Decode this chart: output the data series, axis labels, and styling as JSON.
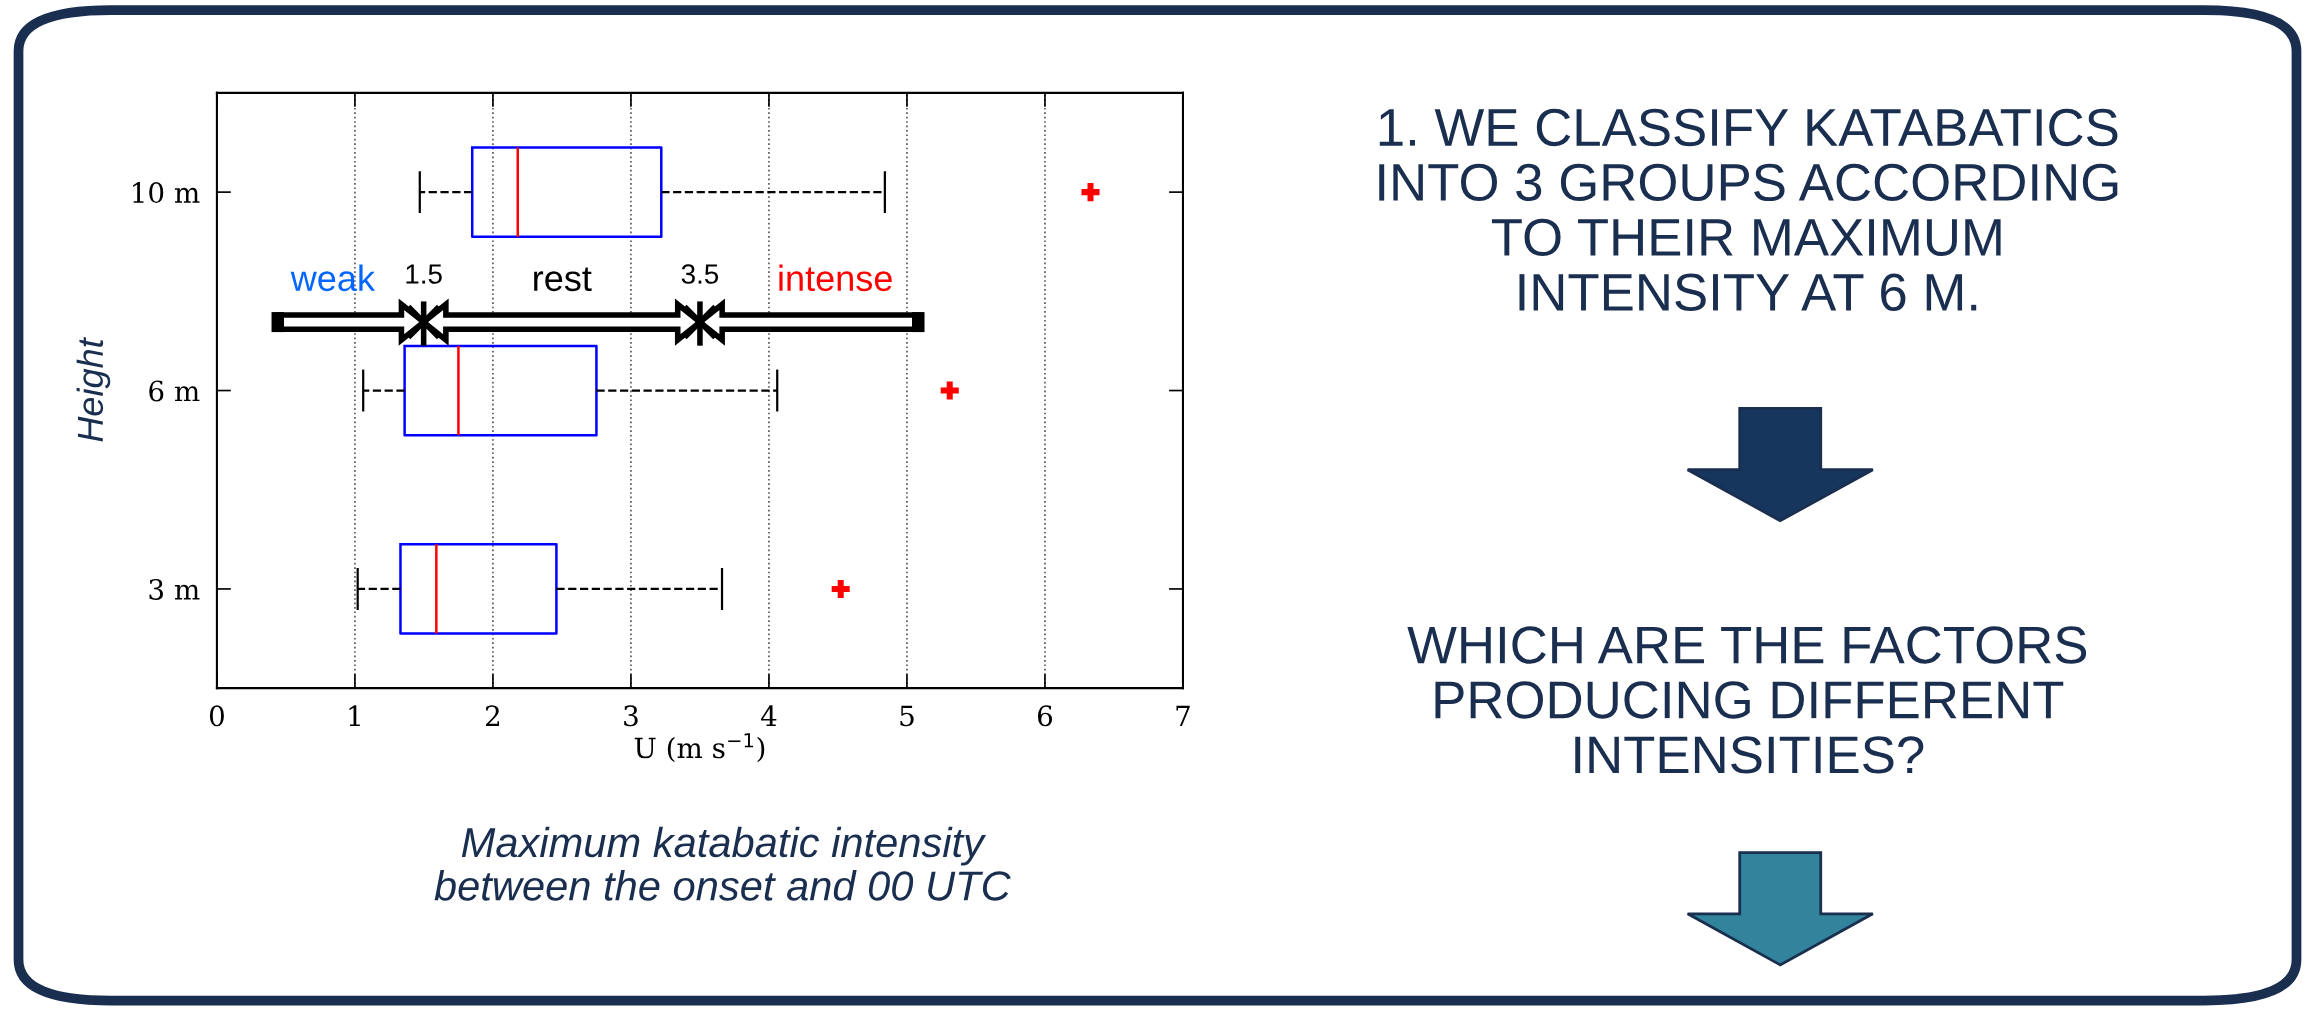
{
  "chart_data": {
    "type": "box",
    "orientation": "horizontal",
    "xlabel": "U (m s$^{−1}$)",
    "ylabel": "Height",
    "categories": [
      "10 m",
      "6 m",
      "3 m"
    ],
    "series": [
      {
        "color": "#0000ff",
        "boxes": [
          {
            "low": 1.47,
            "q1": 1.85,
            "median": 2.18,
            "q3": 3.22,
            "high": 4.84,
            "outliers": [
              6.33
            ]
          },
          {
            "low": 1.06,
            "q1": 1.36,
            "median": 1.75,
            "q3": 2.75,
            "high": 4.06,
            "outliers": [
              5.31
            ]
          },
          {
            "low": 1.02,
            "q1": 1.33,
            "median": 1.59,
            "q3": 2.46,
            "high": 3.66,
            "outliers": [
              4.52
            ]
          }
        ]
      }
    ],
    "xlim": [
      0,
      7
    ],
    "xticks": [
      0,
      1,
      2,
      3,
      4,
      5,
      6,
      7
    ],
    "grid": "x",
    "annotations": [
      "weak",
      "1.5",
      "rest",
      "3.5",
      "intense",
      "Maximum katabatic intensity\nbetween the onset and 00 UTC",
      "1. WE CLASSIFY KATABATICS\nINTO 3 GROUPS ACCORDING\nTO THEIR MAXIMUM\nINTENSITY AT 6 M.",
      "WHICH ARE THE FACTORS\nPRODUCING DIFFERENT\nINTENSITIES?"
    ]
  }
}
